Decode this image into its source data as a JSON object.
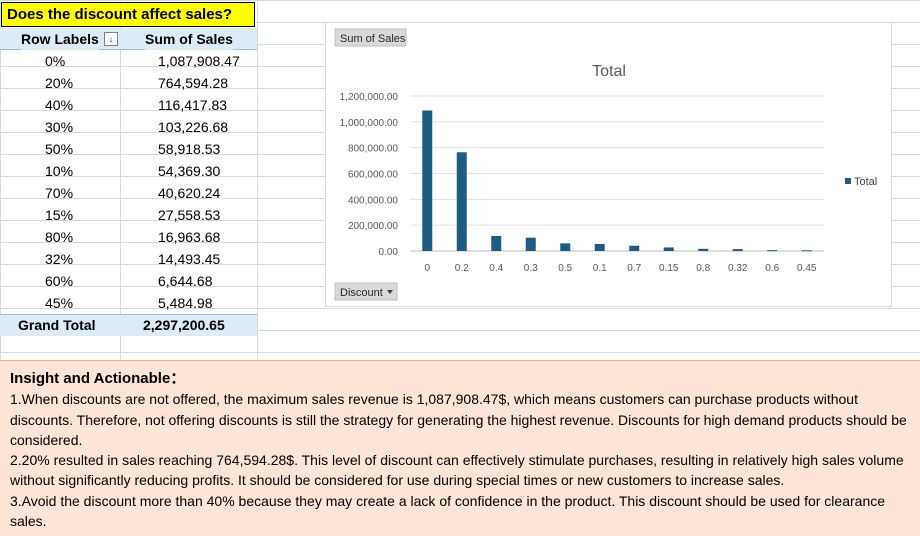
{
  "pivot": {
    "title": "Does the discount affect sales?",
    "col_row_labels": "Row Labels",
    "col_sum": "Sum of Sales",
    "rows": [
      {
        "label": "0%",
        "value": "1,087,908.47"
      },
      {
        "label": "20%",
        "value": "764,594.28"
      },
      {
        "label": "40%",
        "value": "116,417.83"
      },
      {
        "label": "30%",
        "value": "103,226.68"
      },
      {
        "label": "50%",
        "value": "58,918.53"
      },
      {
        "label": "10%",
        "value": "54,369.30"
      },
      {
        "label": "70%",
        "value": "40,620.24"
      },
      {
        "label": "15%",
        "value": "27,558.53"
      },
      {
        "label": "80%",
        "value": "16,963.68"
      },
      {
        "label": "32%",
        "value": "14,493.45"
      },
      {
        "label": "60%",
        "value": "6,644.68"
      },
      {
        "label": "45%",
        "value": "5,484.98"
      }
    ],
    "grand_total_label": "Grand Total",
    "grand_total_value": "2,297,200.65"
  },
  "chart_data": {
    "type": "bar",
    "title": "Total",
    "field_button_values": "Sum of Sales",
    "field_button_axis": "Discount",
    "categories": [
      "0",
      "0.2",
      "0.4",
      "0.3",
      "0.5",
      "0.1",
      "0.7",
      "0.15",
      "0.8",
      "0.32",
      "0.6",
      "0.45"
    ],
    "series": [
      {
        "name": "Total",
        "color": "#1f5c82",
        "values": [
          1087908.47,
          764594.28,
          116417.83,
          103226.68,
          58918.53,
          54369.3,
          40620.24,
          27558.53,
          16963.68,
          14493.45,
          6644.68,
          5484.98
        ]
      }
    ],
    "y_ticks": [
      "0.00",
      "200,000.00",
      "400,000.00",
      "600,000.00",
      "800,000.00",
      "1,000,000.00",
      "1,200,000.00"
    ],
    "ylim": [
      0,
      1200000
    ],
    "grid": true,
    "legend_position": "right"
  },
  "insight": {
    "title": "Insight and Actionable：",
    "point1": "1.When discounts are not offered, the maximum sales revenue is 1,087,908.47$, which means customers can purchase products without discounts. Therefore, not offering discounts is still the strategy for generating the highest revenue. Discounts for high demand products should be considered.",
    "point2": "2.20% resulted in sales reaching 764,594.28$. This level of discount can effectively stimulate purchases, resulting in relatively high sales volume without significantly reducing profits.  It should be considered for use during special times or new customers to increase sales.",
    "point3": "3.Avoid the discount more than 40% because they may create a lack of confidence in the product. This discount should be used for clearance sales."
  }
}
